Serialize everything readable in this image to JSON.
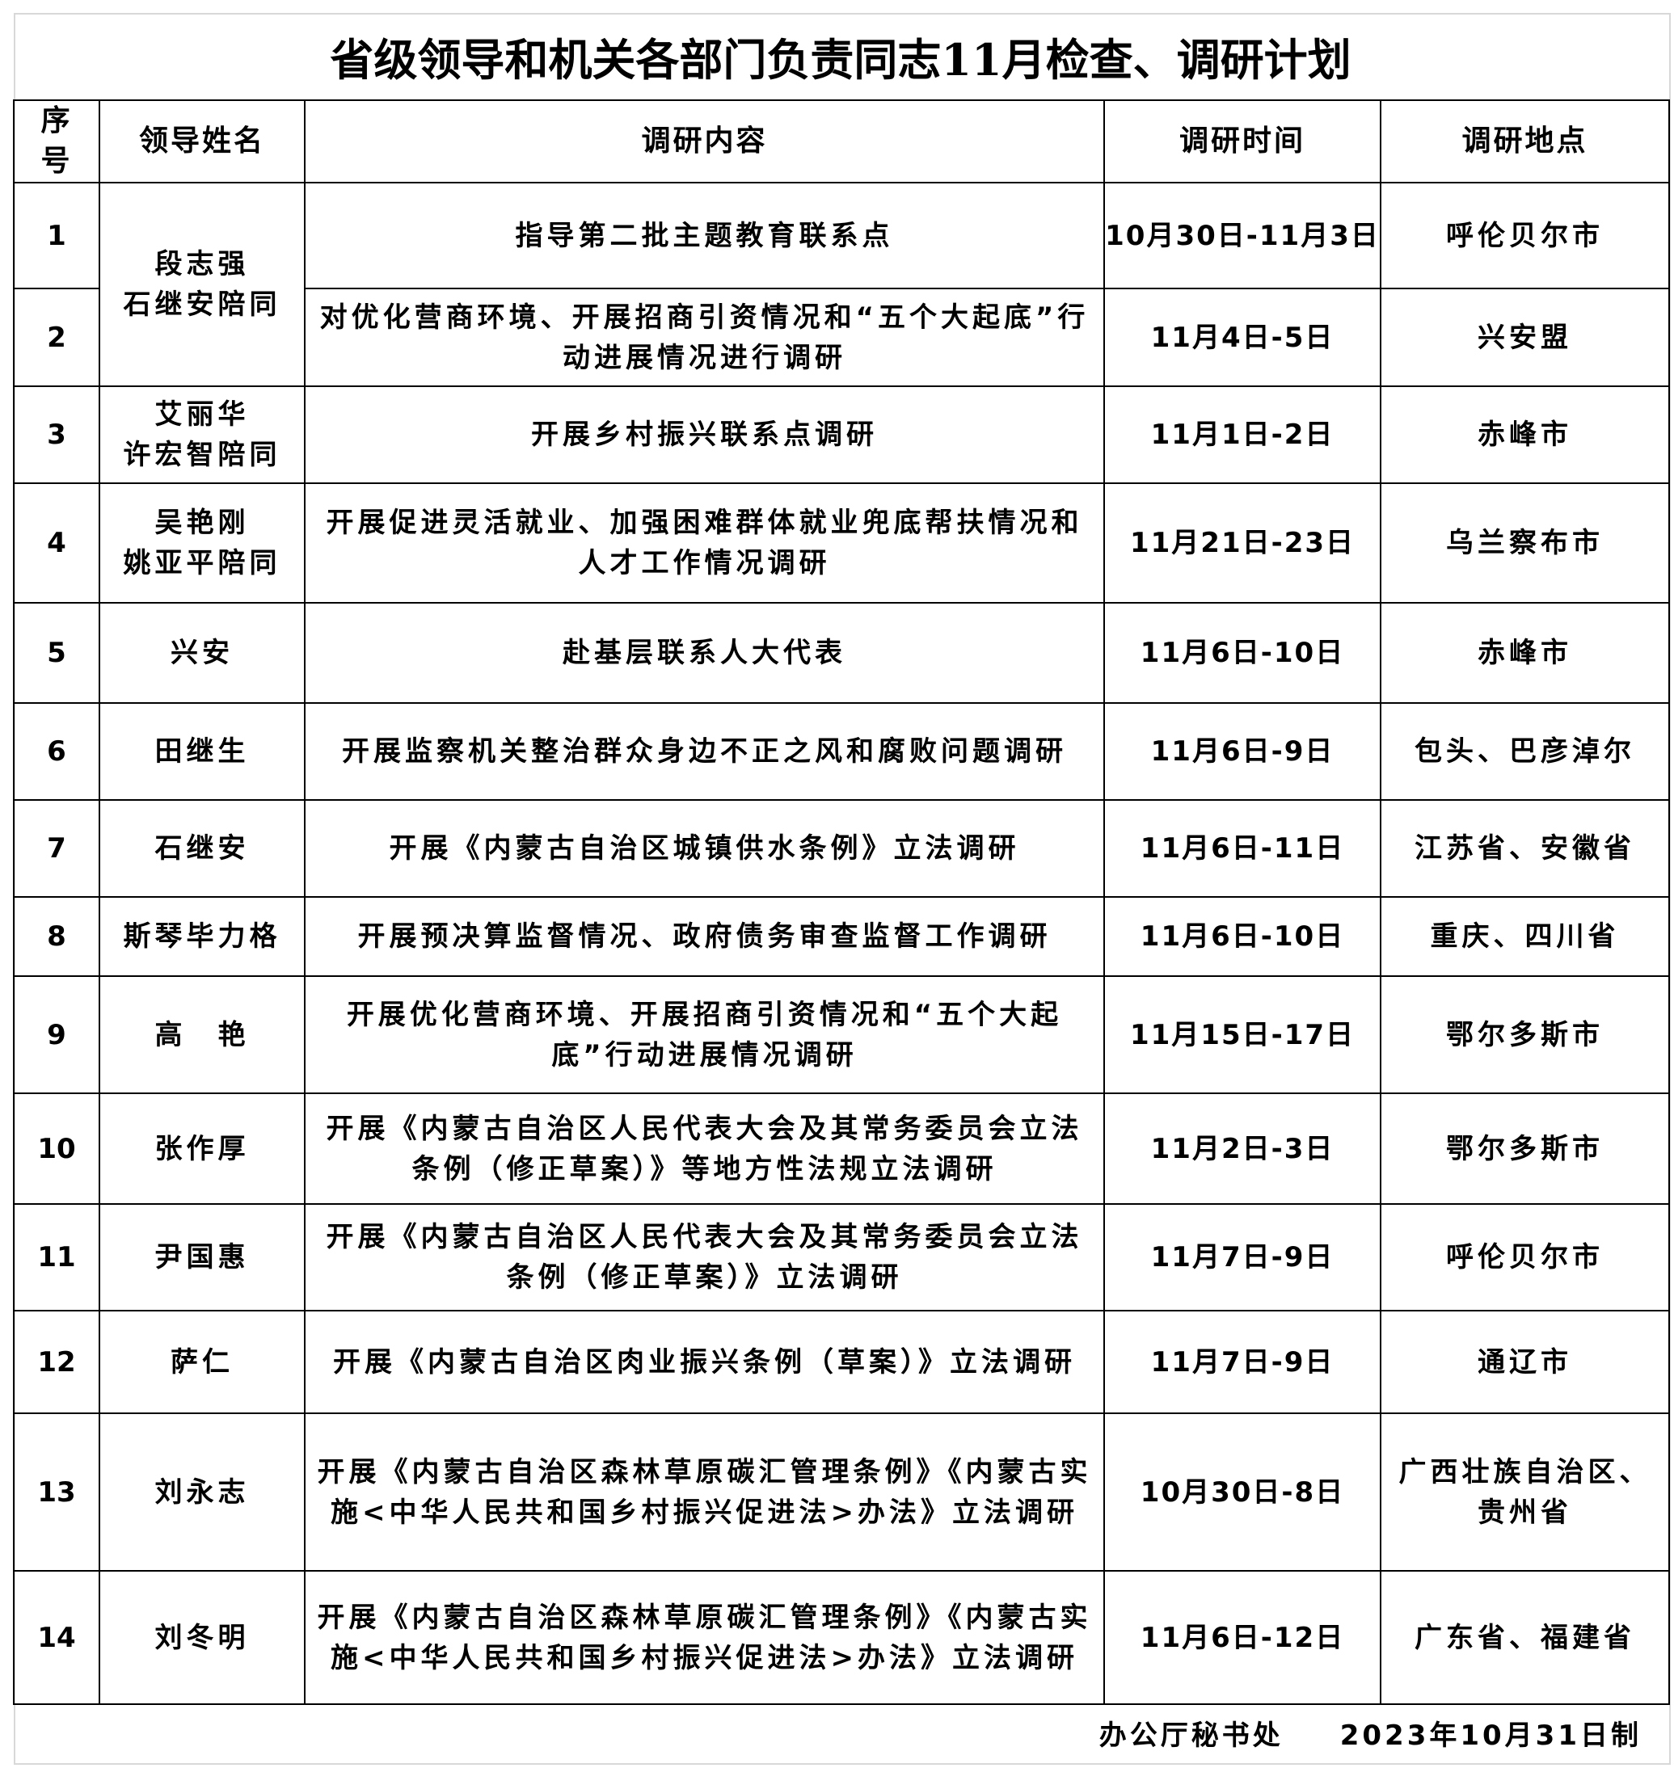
{
  "title": "省级领导和机关各部门负责同志11月检查、调研计划",
  "headers": [
    "序号",
    "领导姓名",
    "调研内容",
    "调研时间",
    "调研地点"
  ],
  "rows": [
    {
      "no": "1",
      "name": "段志强\n石继安陪同",
      "content": "指导第二批主题教育联系点",
      "time": "10月30日-11月3日",
      "place": "呼伦贝尔市"
    },
    {
      "no": "2",
      "name": "",
      "content": "对优化营商环境、开展招商引资情况和“五个大起底”行动进展情况进行调研",
      "time": "11月4日-5日",
      "place": "兴安盟"
    },
    {
      "no": "3",
      "name": "艾丽华\n许宏智陪同",
      "content": "开展乡村振兴联系点调研",
      "time": "11月1日-2日",
      "place": "赤峰市"
    },
    {
      "no": "4",
      "name": "吴艳刚\n姚亚平陪同",
      "content": "开展促进灵活就业、加强困难群体就业兜底帮扶情况和人才工作情况调研",
      "time": "11月21日-23日",
      "place": "乌兰察布市"
    },
    {
      "no": "5",
      "name": "兴安",
      "content": "赴基层联系人大代表",
      "time": "11月6日-10日",
      "place": "赤峰市"
    },
    {
      "no": "6",
      "name": "田继生",
      "content": "开展监察机关整治群众身边不正之风和腐败问题调研",
      "time": "11月6日-9日",
      "place": "包头、巴彦淖尔"
    },
    {
      "no": "7",
      "name": "石继安",
      "content": "开展《内蒙古自治区城镇供水条例》立法调研",
      "time": "11月6日-11日",
      "place": "江苏省、安徽省"
    },
    {
      "no": "8",
      "name": "斯琴毕力格",
      "content": "开展预决算监督情况、政府债务审查监督工作调研",
      "time": "11月6日-10日",
      "place": "重庆、四川省"
    },
    {
      "no": "9",
      "name": "高　艳",
      "content": "开展优化营商环境、开展招商引资情况和“五个大起底”行动进展情况调研",
      "time": "11月15日-17日",
      "place": "鄂尔多斯市"
    },
    {
      "no": "10",
      "name": "张作厚",
      "content": "开展《内蒙古自治区人民代表大会及其常务委员会立法条例（修正草案）》等地方性法规立法调研",
      "time": "11月2日-3日",
      "place": "鄂尔多斯市"
    },
    {
      "no": "11",
      "name": "尹国惠",
      "content": "开展《内蒙古自治区人民代表大会及其常务委员会立法条例（修正草案）》立法调研",
      "time": "11月7日-9日",
      "place": "呼伦贝尔市"
    },
    {
      "no": "12",
      "name": "萨仁",
      "content": "开展《内蒙古自治区肉业振兴条例（草案）》立法调研",
      "time": "11月7日-9日",
      "place": "通辽市"
    },
    {
      "no": "13",
      "name": "刘永志",
      "content": "开展《内蒙古自治区森林草原碳汇管理条例》《内蒙古实施<中华人民共和国乡村振兴促进法>办法》立法调研",
      "time": "10月30日-8日",
      "place": "广西壮族自治区、贵州省"
    },
    {
      "no": "14",
      "name": "刘冬明",
      "content": "开展《内蒙古自治区森林草原碳汇管理条例》《内蒙古实施<中华人民共和国乡村振兴促进法>办法》立法调研",
      "time": "11月6日-12日",
      "place": "广东省、福建省"
    }
  ],
  "footer": {
    "office": "办公厅秘书处",
    "date": "2023年10月31日制"
  }
}
